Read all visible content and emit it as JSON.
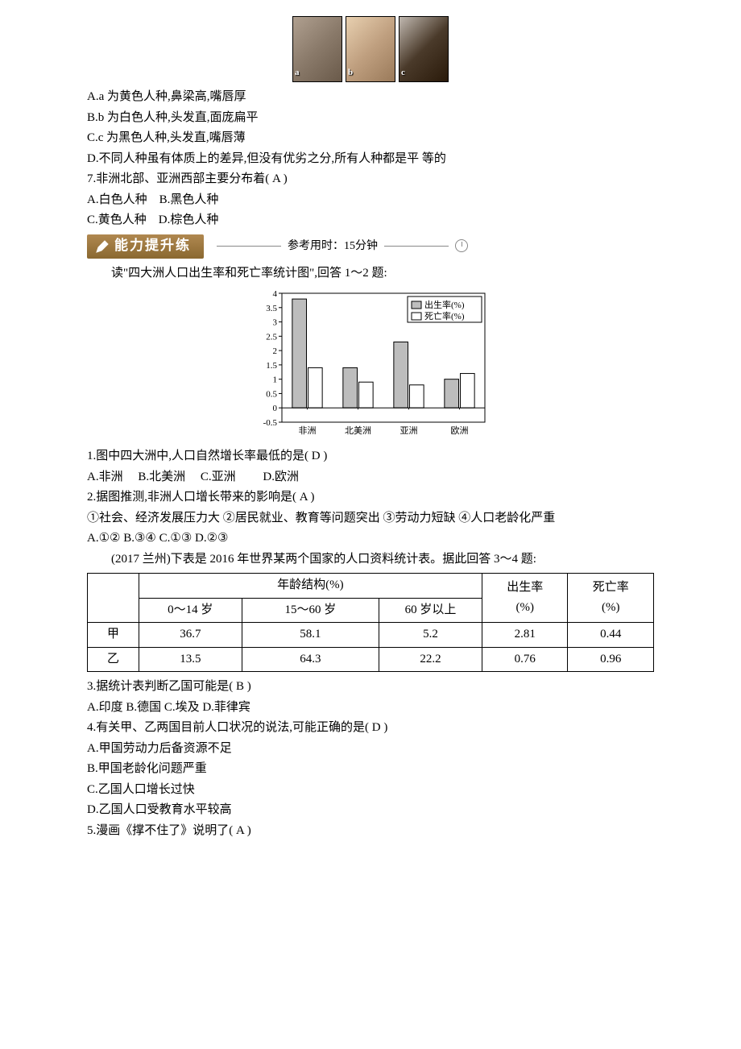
{
  "photos": {
    "labels": [
      "a",
      "b",
      "c"
    ]
  },
  "q_top": {
    "a": "A.a 为黄色人种,鼻梁高,嘴唇厚",
    "b": "B.b 为白色人种,头发直,面庞扁平",
    "c": "C.c 为黑色人种,头发直,嘴唇薄",
    "d": "D.不同人种虽有体质上的差异,但没有优劣之分,所有人种都是平  等的"
  },
  "q7": {
    "stem": "7.非洲北部、亚洲西部主要分布着(  A  )",
    "a": "A.白色人种",
    "b": "B.黑色人种",
    "c": "C.黄色人种",
    "d": "D.棕色人种"
  },
  "section": {
    "badge": "能力提升练",
    "sub": "参考用时：15分钟"
  },
  "chart_intro": "读\"四大洲人口出生率和死亡率统计图\",回答 1～2 题:",
  "chart": {
    "type": "bar",
    "title": "",
    "categories": [
      "非洲",
      "北美洲",
      "亚洲",
      "欧洲"
    ],
    "series": [
      {
        "name": "出生率(%)",
        "fill": "#bdbdbd",
        "values": [
          3.8,
          1.4,
          2.3,
          1.0
        ]
      },
      {
        "name": "死亡率(%)",
        "fill": "#ffffff",
        "values": [
          1.4,
          0.9,
          0.8,
          1.2
        ]
      }
    ],
    "ylim": [
      -0.5,
      4.0
    ],
    "ytick_step": 0.5,
    "yticks": [
      "-0.5",
      "0",
      "0.5",
      "1",
      "1.5",
      "2",
      "2.5",
      "3",
      "3.5",
      "4"
    ],
    "axis_color": "#000000",
    "grid_color": "#000000",
    "background_color": "#ffffff",
    "bar_stroke": "#000000",
    "legend_border": "#000000",
    "label_fontsize": 11,
    "legend_fontsize": 11
  },
  "q1": {
    "stem": "1.图中四大洲中,人口自然增长率最低的是(  D  )",
    "a": "A.非洲",
    "b": "B.北美洲",
    "c": "C.亚洲",
    "d": "D.欧洲"
  },
  "q2": {
    "stem": "2.据图推测,非洲人口增长带来的影响是(  A  )",
    "line2": "①社会、经济发展压力大  ②居民就业、教育等问题突出  ③劳动力短缺  ④人口老龄化严重",
    "opts": "A.①②  B.③④  C.①③  D.②③"
  },
  "table_intro": "(2017 兰州)下表是 2016 年世界某两个国家的人口资料统计表。据此回答 3～4 题:",
  "table": {
    "header1": "年龄结构(%)",
    "col_birth": "出生率\n(%)",
    "col_death": "死亡率\n(%)",
    "age_cols": [
      "0～14 岁",
      "15～60 岁",
      "60 岁以上"
    ],
    "rows": [
      {
        "label": "甲",
        "vals": [
          "36.7",
          "58.1",
          "5.2",
          "2.81",
          "0.44"
        ]
      },
      {
        "label": "乙",
        "vals": [
          "13.5",
          "64.3",
          "22.2",
          "0.76",
          "0.96"
        ]
      }
    ]
  },
  "q3": {
    "stem": "3.据统计表判断乙国可能是(  B  )",
    "opts": "A.印度  B.德国  C.埃及  D.菲律宾"
  },
  "q4": {
    "stem": "4.有关甲、乙两国目前人口状况的说法,可能正确的是(  D  )",
    "a": "A.甲国劳动力后备资源不足",
    "b": "B.甲国老龄化问题严重",
    "c": "C.乙国人口增长过快",
    "d": "D.乙国人口受教育水平较高"
  },
  "q5": {
    "stem": "5.漫画《撑不住了》说明了(  A  )"
  }
}
